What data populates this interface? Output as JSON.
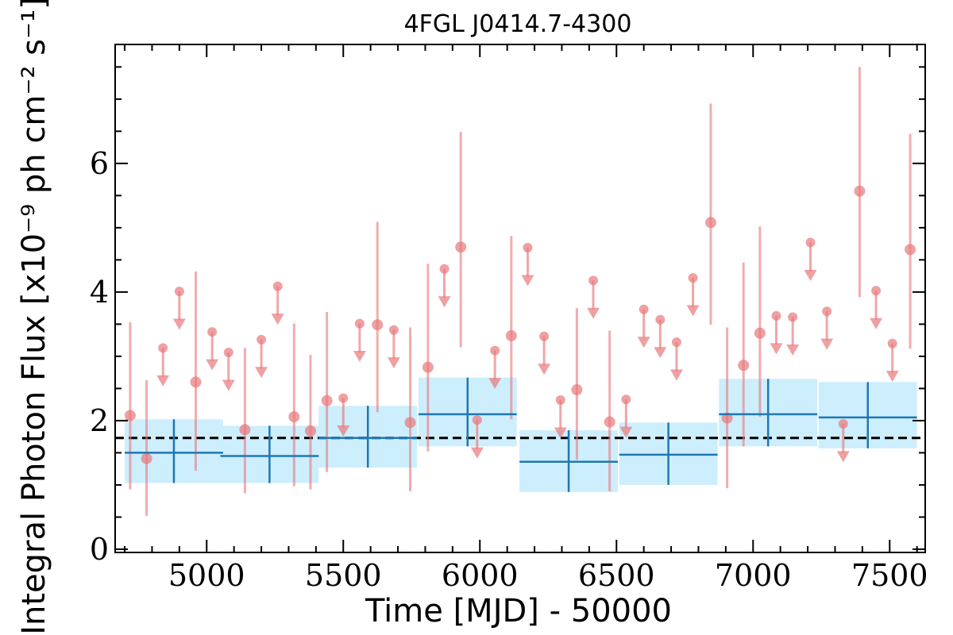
{
  "chart_data": {
    "type": "scatter",
    "title": "4FGL J0414.7-4300",
    "xlabel": "Time [MJD] - 50000",
    "ylabel": "Integral Photon Flux [x10⁻⁹ ph cm⁻² s⁻¹]",
    "xlim": [
      4665,
      7630
    ],
    "ylim": [
      -0.05,
      7.85
    ],
    "xticks": [
      5000,
      5500,
      6000,
      6500,
      7000,
      7500
    ],
    "yticks": [
      0,
      2,
      4,
      6
    ],
    "grid": false,
    "mean_flux": 1.73,
    "colors": {
      "points": "#e8777a",
      "bins": "#1f77b4",
      "bins_band": "#cdeefc",
      "mean": "#000000"
    },
    "bins": [
      {
        "x": 4880,
        "xerr": 180,
        "y": 1.5,
        "ylo": 1.03,
        "yhi": 2.02
      },
      {
        "x": 5230,
        "xerr": 180,
        "y": 1.45,
        "ylo": 1.03,
        "yhi": 1.92
      },
      {
        "x": 5590,
        "xerr": 180,
        "y": 1.73,
        "ylo": 1.27,
        "yhi": 2.23
      },
      {
        "x": 5955,
        "xerr": 180,
        "y": 2.1,
        "ylo": 1.6,
        "yhi": 2.67
      },
      {
        "x": 6325,
        "xerr": 180,
        "y": 1.36,
        "ylo": 0.89,
        "yhi": 1.85
      },
      {
        "x": 6690,
        "xerr": 180,
        "y": 1.47,
        "ylo": 1.0,
        "yhi": 1.97
      },
      {
        "x": 7055,
        "xerr": 180,
        "y": 2.1,
        "ylo": 1.6,
        "yhi": 2.65
      },
      {
        "x": 7420,
        "xerr": 180,
        "y": 2.05,
        "ylo": 1.57,
        "yhi": 2.6
      }
    ],
    "detections": [
      {
        "x": 4720,
        "y": 2.08,
        "ylo": 0.93,
        "yhi": 3.53
      },
      {
        "x": 4780,
        "y": 1.41,
        "ylo": 0.52,
        "yhi": 2.63
      },
      {
        "x": 4960,
        "y": 2.6,
        "ylo": 1.22,
        "yhi": 4.32
      },
      {
        "x": 5140,
        "y": 1.86,
        "ylo": 0.87,
        "yhi": 3.13
      },
      {
        "x": 5320,
        "y": 2.06,
        "ylo": 0.98,
        "yhi": 3.51
      },
      {
        "x": 5380,
        "y": 1.84,
        "ylo": 0.93,
        "yhi": 3.02
      },
      {
        "x": 5440,
        "y": 2.31,
        "ylo": 1.2,
        "yhi": 3.69
      },
      {
        "x": 5625,
        "y": 3.49,
        "ylo": 2.13,
        "yhi": 5.09
      },
      {
        "x": 5745,
        "y": 1.97,
        "ylo": 0.9,
        "yhi": 3.45
      },
      {
        "x": 5810,
        "y": 2.83,
        "ylo": 1.52,
        "yhi": 4.44
      },
      {
        "x": 5930,
        "y": 4.7,
        "ylo": 3.14,
        "yhi": 6.49
      },
      {
        "x": 6115,
        "y": 3.32,
        "ylo": 2.02,
        "yhi": 4.87
      },
      {
        "x": 6355,
        "y": 2.48,
        "ylo": 1.39,
        "yhi": 3.75
      },
      {
        "x": 6475,
        "y": 1.98,
        "ylo": 0.9,
        "yhi": 3.4
      },
      {
        "x": 6845,
        "y": 5.08,
        "ylo": 3.49,
        "yhi": 6.93
      },
      {
        "x": 6905,
        "y": 2.04,
        "ylo": 0.95,
        "yhi": 3.45
      },
      {
        "x": 6965,
        "y": 2.86,
        "ylo": 1.6,
        "yhi": 4.46
      },
      {
        "x": 7025,
        "y": 3.36,
        "ylo": 2.06,
        "yhi": 5.02
      },
      {
        "x": 7390,
        "y": 5.57,
        "ylo": 3.92,
        "yhi": 7.5
      },
      {
        "x": 7575,
        "y": 4.66,
        "ylo": 3.12,
        "yhi": 6.46
      }
    ],
    "upper_limits": [
      {
        "x": 4840,
        "y": 3.13
      },
      {
        "x": 4900,
        "y": 4.01
      },
      {
        "x": 5020,
        "y": 3.38
      },
      {
        "x": 5080,
        "y": 3.06
      },
      {
        "x": 5200,
        "y": 3.26
      },
      {
        "x": 5260,
        "y": 4.09
      },
      {
        "x": 5500,
        "y": 2.35
      },
      {
        "x": 5560,
        "y": 3.51
      },
      {
        "x": 5685,
        "y": 3.41
      },
      {
        "x": 5870,
        "y": 4.36
      },
      {
        "x": 5990,
        "y": 2.01
      },
      {
        "x": 6055,
        "y": 3.09
      },
      {
        "x": 6175,
        "y": 4.69
      },
      {
        "x": 6235,
        "y": 3.31
      },
      {
        "x": 6295,
        "y": 2.32
      },
      {
        "x": 6415,
        "y": 4.18
      },
      {
        "x": 6535,
        "y": 2.33
      },
      {
        "x": 6600,
        "y": 3.73
      },
      {
        "x": 6660,
        "y": 3.57
      },
      {
        "x": 6720,
        "y": 3.22
      },
      {
        "x": 6780,
        "y": 4.22
      },
      {
        "x": 7085,
        "y": 3.63
      },
      {
        "x": 7145,
        "y": 3.61
      },
      {
        "x": 7210,
        "y": 4.77
      },
      {
        "x": 7270,
        "y": 3.7
      },
      {
        "x": 7330,
        "y": 1.95
      },
      {
        "x": 7450,
        "y": 4.02
      },
      {
        "x": 7510,
        "y": 3.2
      }
    ]
  }
}
